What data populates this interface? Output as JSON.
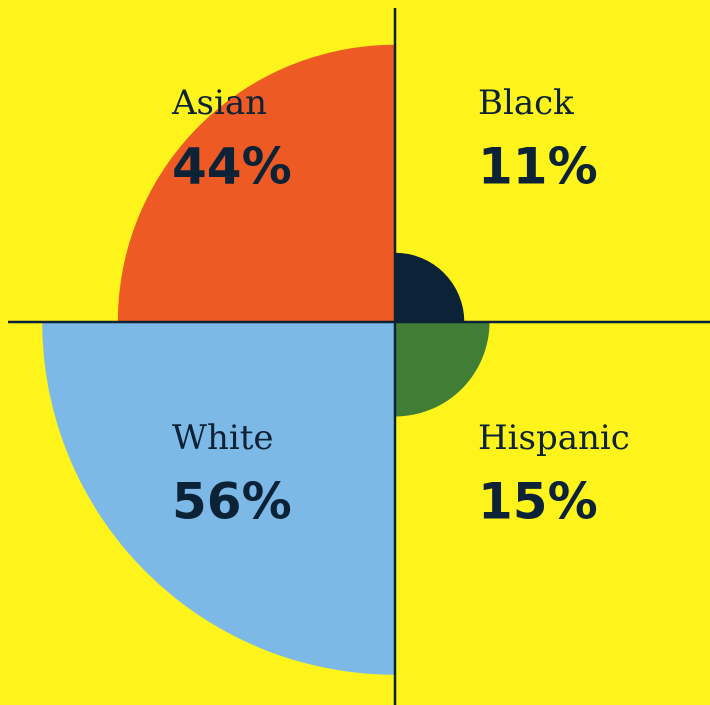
{
  "chart_data": {
    "type": "polar_area",
    "categories": [
      "Asian",
      "Black",
      "Hispanic",
      "White"
    ],
    "values": [
      44,
      11,
      15,
      56
    ],
    "value_labels": [
      "44%",
      "11%",
      "15%",
      "56%"
    ],
    "colors": [
      "#ee5a24",
      "#0b2237",
      "#3f7e34",
      "#7db9e6"
    ]
  }
}
